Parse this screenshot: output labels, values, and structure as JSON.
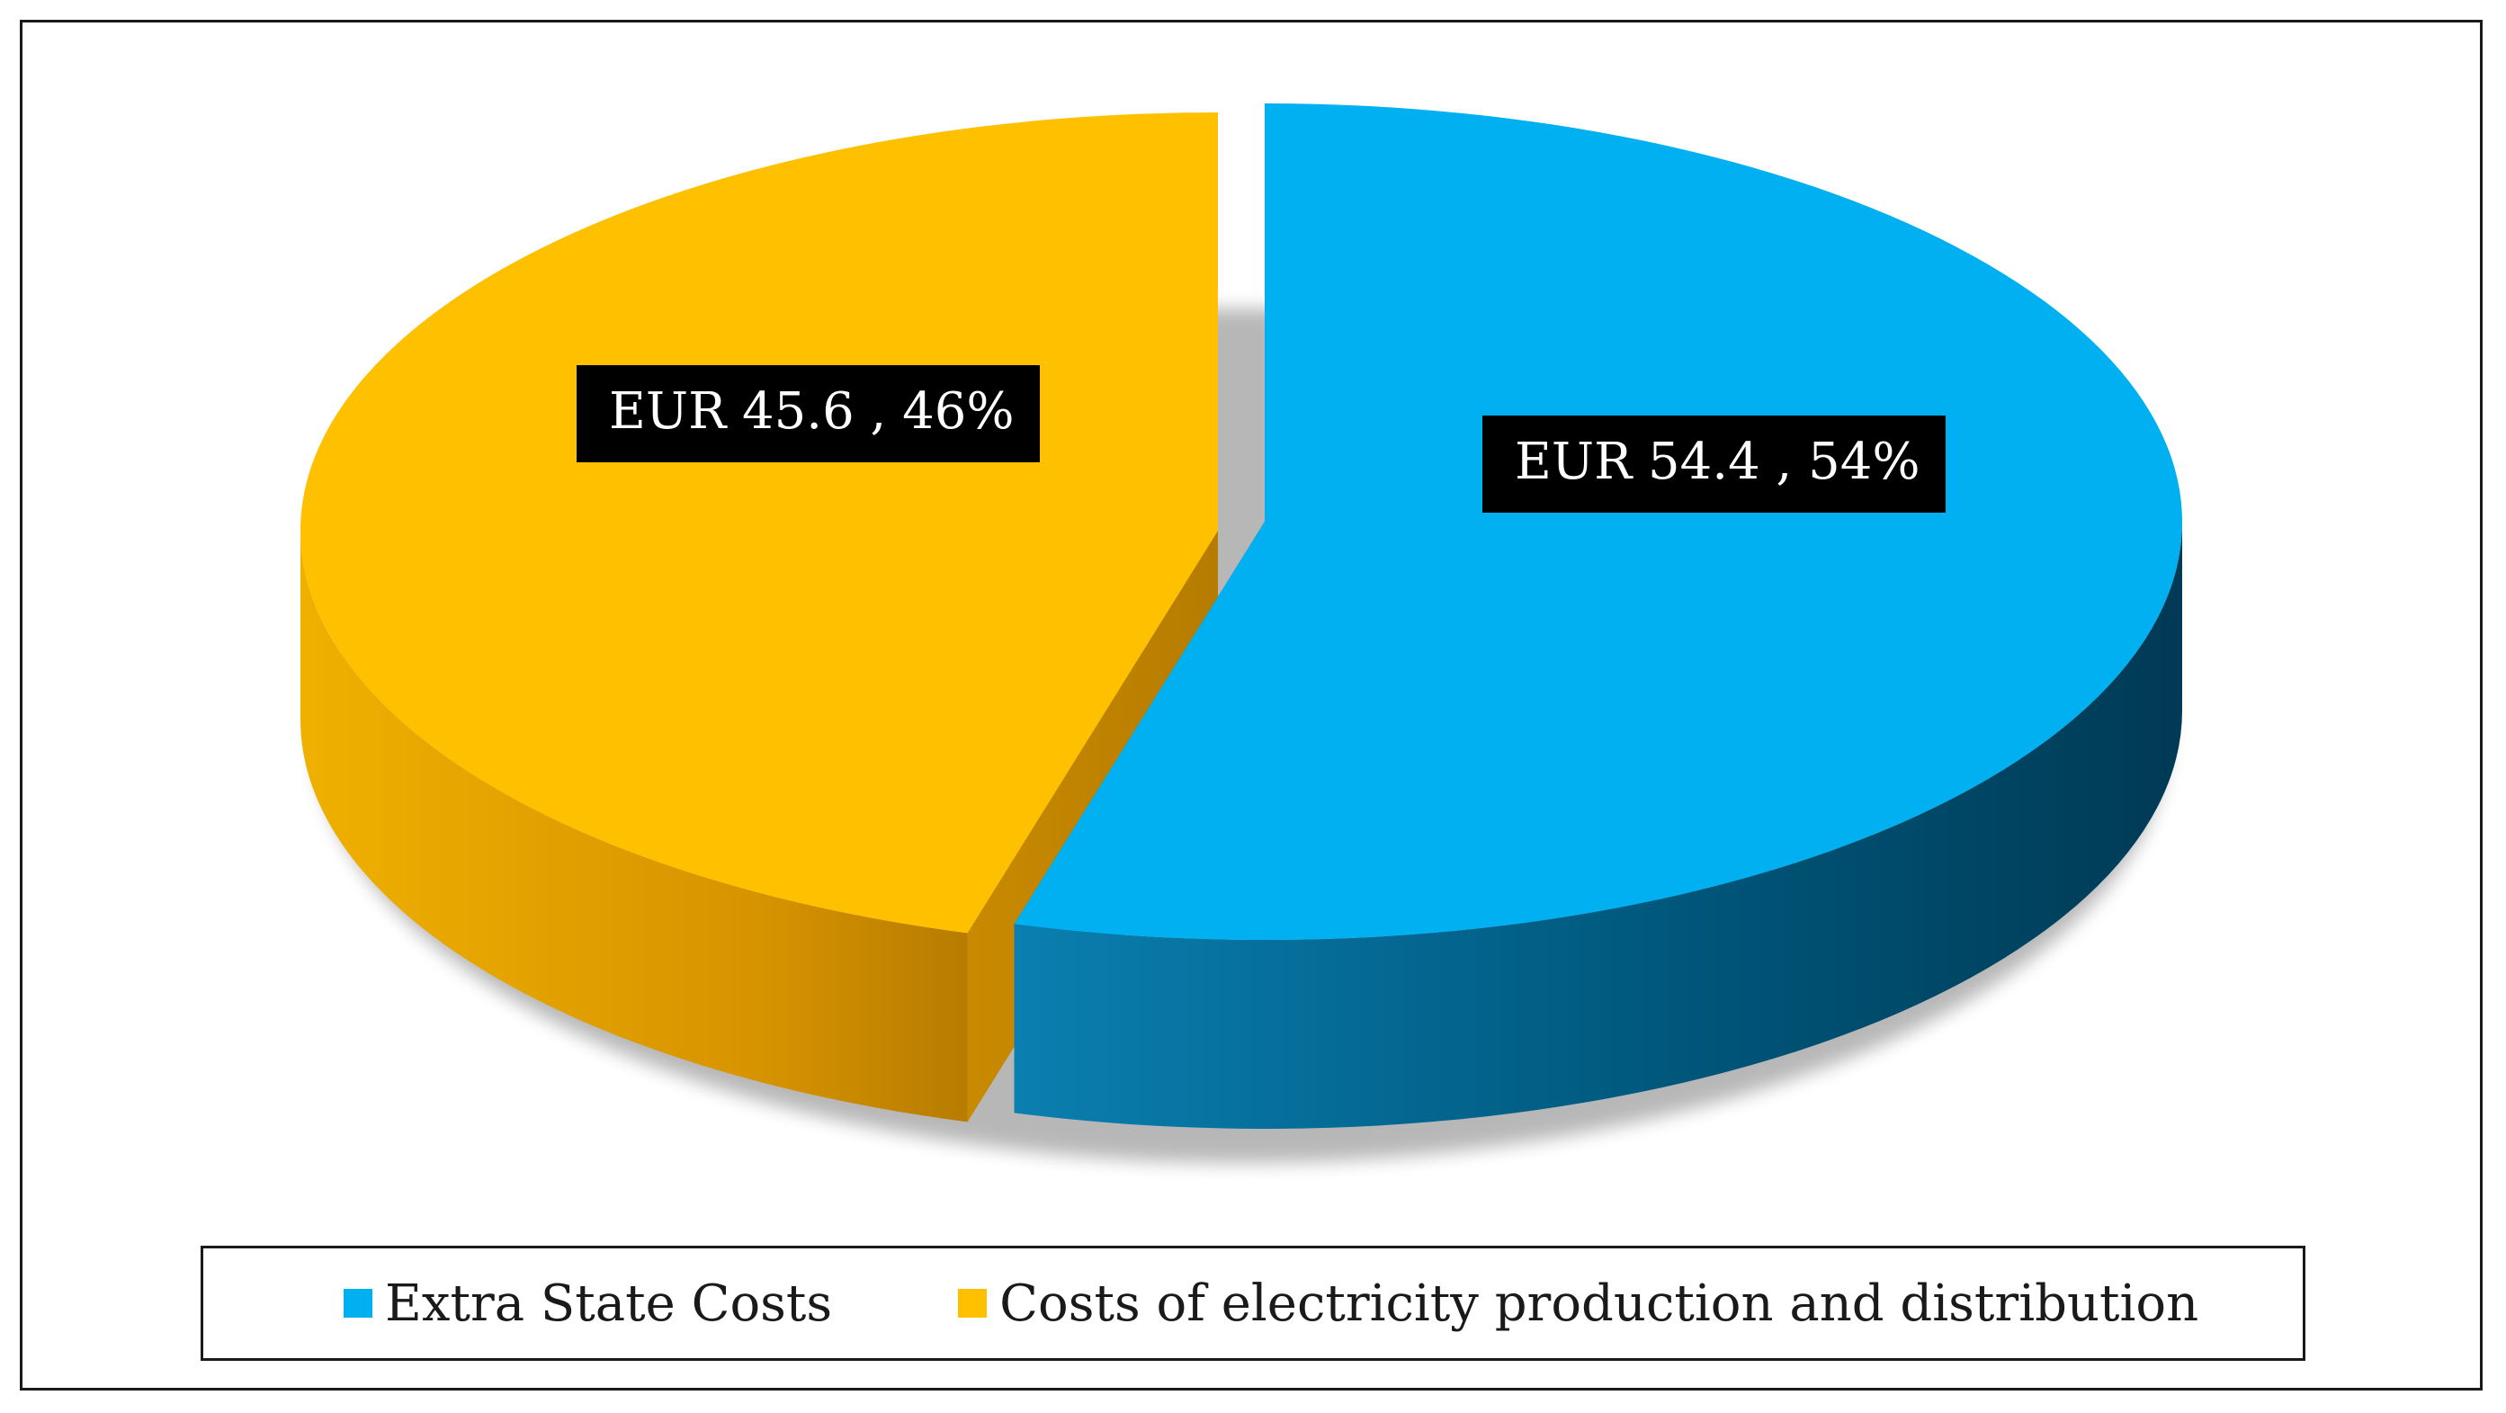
{
  "chart_data": {
    "type": "pie",
    "categories": [
      "Extra State Costs",
      "Costs of electricity production and distribution"
    ],
    "values": [
      54.4,
      45.6
    ],
    "percentages": [
      54,
      46
    ],
    "data_labels": [
      "EUR 54.4 , 54%",
      "EUR 45.6 , 46%"
    ],
    "colors": [
      "#00b0f0",
      "#ffc000"
    ],
    "side_colors": [
      "#005f86",
      "#d99a00"
    ],
    "title": "",
    "legend_position": "bottom",
    "three_d": true
  },
  "legend": {
    "items": [
      {
        "label": "Extra State Costs",
        "color": "#00b0f0"
      },
      {
        "label": "Costs of electricity production and distribution",
        "color": "#ffc000"
      }
    ]
  }
}
